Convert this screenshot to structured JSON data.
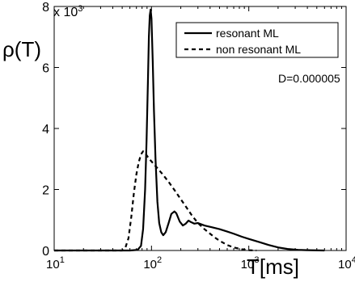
{
  "chart_data": {
    "type": "line",
    "title": "",
    "ylabel": "ρ(T)",
    "xlabel": "T[ms]",
    "x_scale": "log",
    "xlim": [
      10,
      10000
    ],
    "ylim": [
      0,
      8
    ],
    "y_multiplier_label": "x 10",
    "y_multiplier_exponent": "3",
    "x_tick_base": "10",
    "x_ticks": [
      {
        "value": 10,
        "exp": "1"
      },
      {
        "value": 100,
        "exp": "2"
      },
      {
        "value": 1000,
        "exp": "3"
      },
      {
        "value": 10000,
        "exp": "4"
      }
    ],
    "y_ticks": [
      {
        "value": 0,
        "label": "0"
      },
      {
        "value": 2,
        "label": "2"
      },
      {
        "value": 4,
        "label": "4"
      },
      {
        "value": 6,
        "label": "6"
      },
      {
        "value": 8,
        "label": "8"
      }
    ],
    "grid": false,
    "legend_position": "top-right",
    "annotation": "D=0.000005",
    "series": [
      {
        "name": "resonant ML",
        "style": "solid",
        "points": [
          [
            10,
            0
          ],
          [
            60,
            0
          ],
          [
            72,
            0.02
          ],
          [
            78,
            0.15
          ],
          [
            82,
            0.7
          ],
          [
            86,
            2.0
          ],
          [
            89,
            3.6
          ],
          [
            92,
            5.6
          ],
          [
            94,
            7.0
          ],
          [
            96,
            7.7
          ],
          [
            98,
            7.9
          ],
          [
            100,
            7.6
          ],
          [
            103,
            6.2
          ],
          [
            106,
            4.6
          ],
          [
            110,
            3.0
          ],
          [
            115,
            1.6
          ],
          [
            120,
            0.9
          ],
          [
            126,
            0.6
          ],
          [
            132,
            0.5
          ],
          [
            140,
            0.6
          ],
          [
            150,
            0.9
          ],
          [
            160,
            1.2
          ],
          [
            172,
            1.28
          ],
          [
            180,
            1.22
          ],
          [
            195,
            0.95
          ],
          [
            210,
            0.82
          ],
          [
            225,
            0.88
          ],
          [
            240,
            0.98
          ],
          [
            255,
            0.93
          ],
          [
            275,
            0.88
          ],
          [
            300,
            0.9
          ],
          [
            350,
            0.82
          ],
          [
            420,
            0.76
          ],
          [
            500,
            0.7
          ],
          [
            600,
            0.62
          ],
          [
            700,
            0.55
          ],
          [
            850,
            0.45
          ],
          [
            1000,
            0.38
          ],
          [
            1300,
            0.27
          ],
          [
            1600,
            0.18
          ],
          [
            2000,
            0.1
          ],
          [
            2500,
            0.05
          ],
          [
            3200,
            0.02
          ],
          [
            4000,
            0.01
          ],
          [
            6000,
            0
          ]
        ]
      },
      {
        "name": "non resonant ML",
        "style": "dashed",
        "points": [
          [
            10,
            0
          ],
          [
            50,
            0
          ],
          [
            54,
            0.1
          ],
          [
            58,
            0.4
          ],
          [
            62,
            1.1
          ],
          [
            66,
            1.9
          ],
          [
            70,
            2.5
          ],
          [
            74,
            2.9
          ],
          [
            78,
            3.15
          ],
          [
            82,
            3.25
          ],
          [
            86,
            3.2
          ],
          [
            90,
            3.1
          ],
          [
            95,
            3.0
          ],
          [
            100,
            2.92
          ],
          [
            115,
            2.7
          ],
          [
            130,
            2.5
          ],
          [
            150,
            2.25
          ],
          [
            175,
            1.95
          ],
          [
            200,
            1.68
          ],
          [
            230,
            1.4
          ],
          [
            260,
            1.15
          ],
          [
            300,
            0.9
          ],
          [
            350,
            0.7
          ],
          [
            400,
            0.55
          ],
          [
            450,
            0.42
          ],
          [
            500,
            0.32
          ],
          [
            600,
            0.18
          ],
          [
            700,
            0.1
          ],
          [
            850,
            0.04
          ],
          [
            1000,
            0.01
          ],
          [
            1200,
            0
          ]
        ]
      }
    ]
  }
}
